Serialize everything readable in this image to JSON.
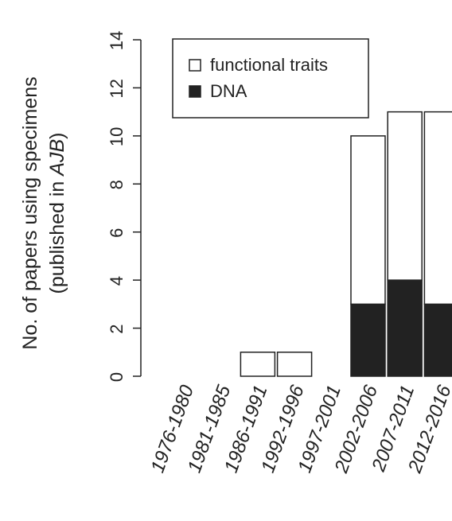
{
  "chart_data": {
    "type": "bar",
    "stacked": true,
    "categories": [
      "1976-1980",
      "1981-1985",
      "1986-1991",
      "1992-1996",
      "1997-2001",
      "2002-2006",
      "2007-2011",
      "2012-2016"
    ],
    "series": [
      {
        "name": "DNA",
        "color": "#222222",
        "values": [
          0,
          0,
          0,
          0,
          0,
          3,
          4,
          3
        ]
      },
      {
        "name": "functional traits",
        "color": "#ffffff",
        "values": [
          0,
          0,
          1,
          1,
          0,
          7,
          7,
          8
        ]
      }
    ],
    "ylabel_line1": "No. of papers using specimens",
    "ylabel_line2_prefix": "(published in ",
    "ylabel_line2_italic": "AJB",
    "ylabel_line2_suffix": ")",
    "ylim": [
      0,
      14
    ],
    "yticks": [
      "0",
      "2",
      "4",
      "6",
      "8",
      "10",
      "12",
      "14"
    ],
    "legend": {
      "position": "top-left",
      "entries": [
        "functional traits",
        "DNA"
      ]
    },
    "grid": false
  }
}
